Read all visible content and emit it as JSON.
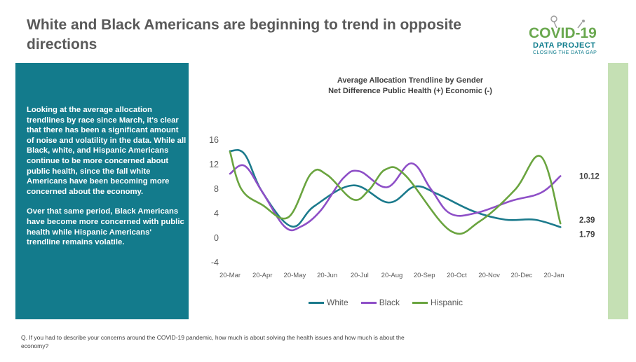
{
  "slide": {
    "title": "White and Black Americans are beginning to trend in opposite directions",
    "footnote": "Q. If you had to describe your concerns around the COVID-19 pandemic, how much is about solving the health issues and how much is about the economy?"
  },
  "logo": {
    "line1": "COVID-19",
    "line2": "DATA PROJECT",
    "line3": "CLOSING THE DATA GAP",
    "icon": "stethoscope-icon"
  },
  "panel": {
    "paragraph1": "Looking at the average allocation trendlines by race since March, it's clear that there has been a significant amount of noise and volatility in the data. While all Black, white, and Hispanic Americans continue to be more concerned about public health, since the fall white Americans have been becoming more concerned about the economy.",
    "paragraph2": "Over that same period, Black Americans have become more concerned with public health while Hispanic Americans' trendline remains volatile."
  },
  "colors": {
    "white_series": "#1b7a8c",
    "black_series": "#8e4fc7",
    "hispanic_series": "#6aa43f",
    "panel": "#137b8c",
    "side_bar": "#c5e0b4",
    "axis_text": "#595959"
  },
  "chart_data": {
    "type": "line",
    "title": "Average Allocation Trendline by Gender",
    "subtitle": "Net Difference Public Health (+) Economic (-)",
    "xlabel": "",
    "ylabel": "",
    "x": [
      "20-Mar",
      "20-Apr",
      "20-May",
      "20-Jun",
      "20-Jul",
      "20-Aug",
      "20-Sep",
      "20-Oct",
      "20-Nov",
      "20-Dec",
      "20-Jan"
    ],
    "y_ticks": [
      "16",
      "12",
      "8",
      "4",
      "0",
      "-4"
    ],
    "ylim": [
      -4,
      16
    ],
    "grid": false,
    "legend_position": "bottom",
    "series": [
      {
        "name": "White",
        "color_key": "white_series",
        "points": [
          [
            0,
            14.2
          ],
          [
            0.45,
            13.7
          ],
          [
            1.0,
            7.5
          ],
          [
            1.9,
            1.9
          ],
          [
            2.6,
            5.2
          ],
          [
            3.8,
            8.6
          ],
          [
            4.9,
            5.8
          ],
          [
            5.7,
            8.4
          ],
          [
            6.4,
            7.2
          ],
          [
            7.5,
            4.4
          ],
          [
            8.5,
            3.0
          ],
          [
            9.4,
            3.0
          ],
          [
            10.2,
            1.79
          ]
        ]
      },
      {
        "name": "Black",
        "color_key": "black_series",
        "points": [
          [
            0,
            10.5
          ],
          [
            0.45,
            11.8
          ],
          [
            1.0,
            7.5
          ],
          [
            1.7,
            1.8
          ],
          [
            2.2,
            1.9
          ],
          [
            2.8,
            4.5
          ],
          [
            3.5,
            9.8
          ],
          [
            4.0,
            10.9
          ],
          [
            4.85,
            8.3
          ],
          [
            5.6,
            12.2
          ],
          [
            6.2,
            8.0
          ],
          [
            6.8,
            4.0
          ],
          [
            7.6,
            4.1
          ],
          [
            8.7,
            6.1
          ],
          [
            9.6,
            7.4
          ],
          [
            10.2,
            10.12
          ]
        ]
      },
      {
        "name": "Hispanic",
        "color_key": "hispanic_series",
        "points": [
          [
            0,
            14.1
          ],
          [
            0.35,
            8.0
          ],
          [
            1.0,
            5.4
          ],
          [
            1.8,
            3.4
          ],
          [
            2.5,
            10.5
          ],
          [
            3.0,
            10.3
          ],
          [
            3.8,
            6.3
          ],
          [
            4.3,
            7.9
          ],
          [
            4.8,
            11.2
          ],
          [
            5.4,
            10.3
          ],
          [
            6.8,
            1.2
          ],
          [
            7.7,
            2.7
          ],
          [
            8.8,
            7.9
          ],
          [
            9.6,
            13.3
          ],
          [
            10.2,
            2.39
          ]
        ]
      }
    ],
    "end_labels": [
      "10.12",
      "2.39",
      "1.79"
    ]
  }
}
